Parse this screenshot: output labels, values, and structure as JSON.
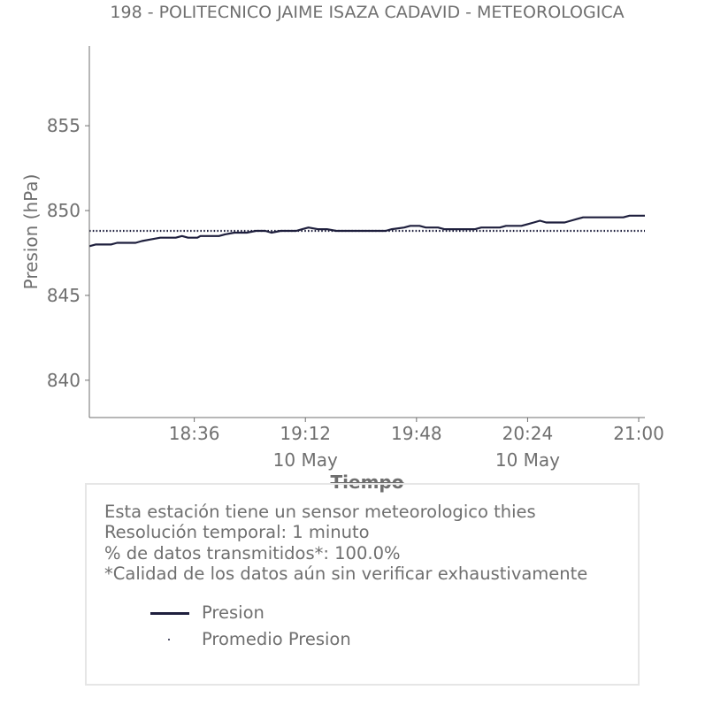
{
  "chart_data": {
    "type": "line",
    "title": "198 - POLITECNICO JAIME ISAZA CADAVID - METEOROLOGICA",
    "xlabel": "Tiempo",
    "ylabel": "Presion (hPa)",
    "x_range": [
      "18:02",
      "21:02"
    ],
    "ylim": [
      837.8,
      859.7
    ],
    "yticks": [
      840,
      845,
      850,
      855
    ],
    "xticks": [
      {
        "time": "18:36",
        "label": "18:36",
        "sublabel": ""
      },
      {
        "time": "19:12",
        "label": "19:12",
        "sublabel": "10 May"
      },
      {
        "time": "19:48",
        "label": "19:48",
        "sublabel": ""
      },
      {
        "time": "20:24",
        "label": "20:24",
        "sublabel": "10 May"
      },
      {
        "time": "21:00",
        "label": "21:00",
        "sublabel": ""
      }
    ],
    "grid": false,
    "legend_placement": "below",
    "series": [
      {
        "name": "Presion",
        "color": "#1e1f3d",
        "style": "solid",
        "points": [
          [
            "18:02",
            847.9
          ],
          [
            "18:04",
            848.0
          ],
          [
            "18:09",
            848.0
          ],
          [
            "18:11",
            848.1
          ],
          [
            "18:17",
            848.1
          ],
          [
            "18:19",
            848.2
          ],
          [
            "18:22",
            848.3
          ],
          [
            "18:25",
            848.4
          ],
          [
            "18:30",
            848.4
          ],
          [
            "18:32",
            848.5
          ],
          [
            "18:34",
            848.4
          ],
          [
            "18:37",
            848.4
          ],
          [
            "18:38",
            848.5
          ],
          [
            "18:44",
            848.5
          ],
          [
            "18:46",
            848.6
          ],
          [
            "18:49",
            848.7
          ],
          [
            "18:53",
            848.7
          ],
          [
            "18:56",
            848.8
          ],
          [
            "18:59",
            848.8
          ],
          [
            "19:01",
            848.7
          ],
          [
            "19:04",
            848.8
          ],
          [
            "19:09",
            848.8
          ],
          [
            "19:11",
            848.9
          ],
          [
            "19:13",
            849.0
          ],
          [
            "19:16",
            848.9
          ],
          [
            "19:19",
            848.9
          ],
          [
            "19:22",
            848.8
          ],
          [
            "19:38",
            848.8
          ],
          [
            "19:40",
            848.9
          ],
          [
            "19:44",
            849.0
          ],
          [
            "19:46",
            849.1
          ],
          [
            "19:49",
            849.1
          ],
          [
            "19:51",
            849.0
          ],
          [
            "19:55",
            849.0
          ],
          [
            "19:57",
            848.9
          ],
          [
            "20:07",
            848.9
          ],
          [
            "20:09",
            849.0
          ],
          [
            "20:15",
            849.0
          ],
          [
            "20:17",
            849.1
          ],
          [
            "20:22",
            849.1
          ],
          [
            "20:24",
            849.2
          ],
          [
            "20:26",
            849.3
          ],
          [
            "20:28",
            849.4
          ],
          [
            "20:30",
            849.3
          ],
          [
            "20:36",
            849.3
          ],
          [
            "20:38",
            849.4
          ],
          [
            "20:40",
            849.5
          ],
          [
            "20:42",
            849.6
          ],
          [
            "20:55",
            849.6
          ],
          [
            "20:57",
            849.7
          ],
          [
            "21:02",
            849.7
          ]
        ]
      },
      {
        "name": "Promedio Presion",
        "color": "#1e1f3d",
        "style": "dotted",
        "points": [
          [
            "18:02",
            848.8
          ],
          [
            "21:02",
            848.8
          ]
        ]
      }
    ]
  },
  "info": {
    "line1": "Esta estación tiene un sensor meteorologico thies",
    "line2": "Resolución temporal: 1 minuto",
    "line3": "% de datos transmitidos*: 100.0%",
    "line4": "*Calidad de los datos aún sin verificar exhaustivamente"
  }
}
